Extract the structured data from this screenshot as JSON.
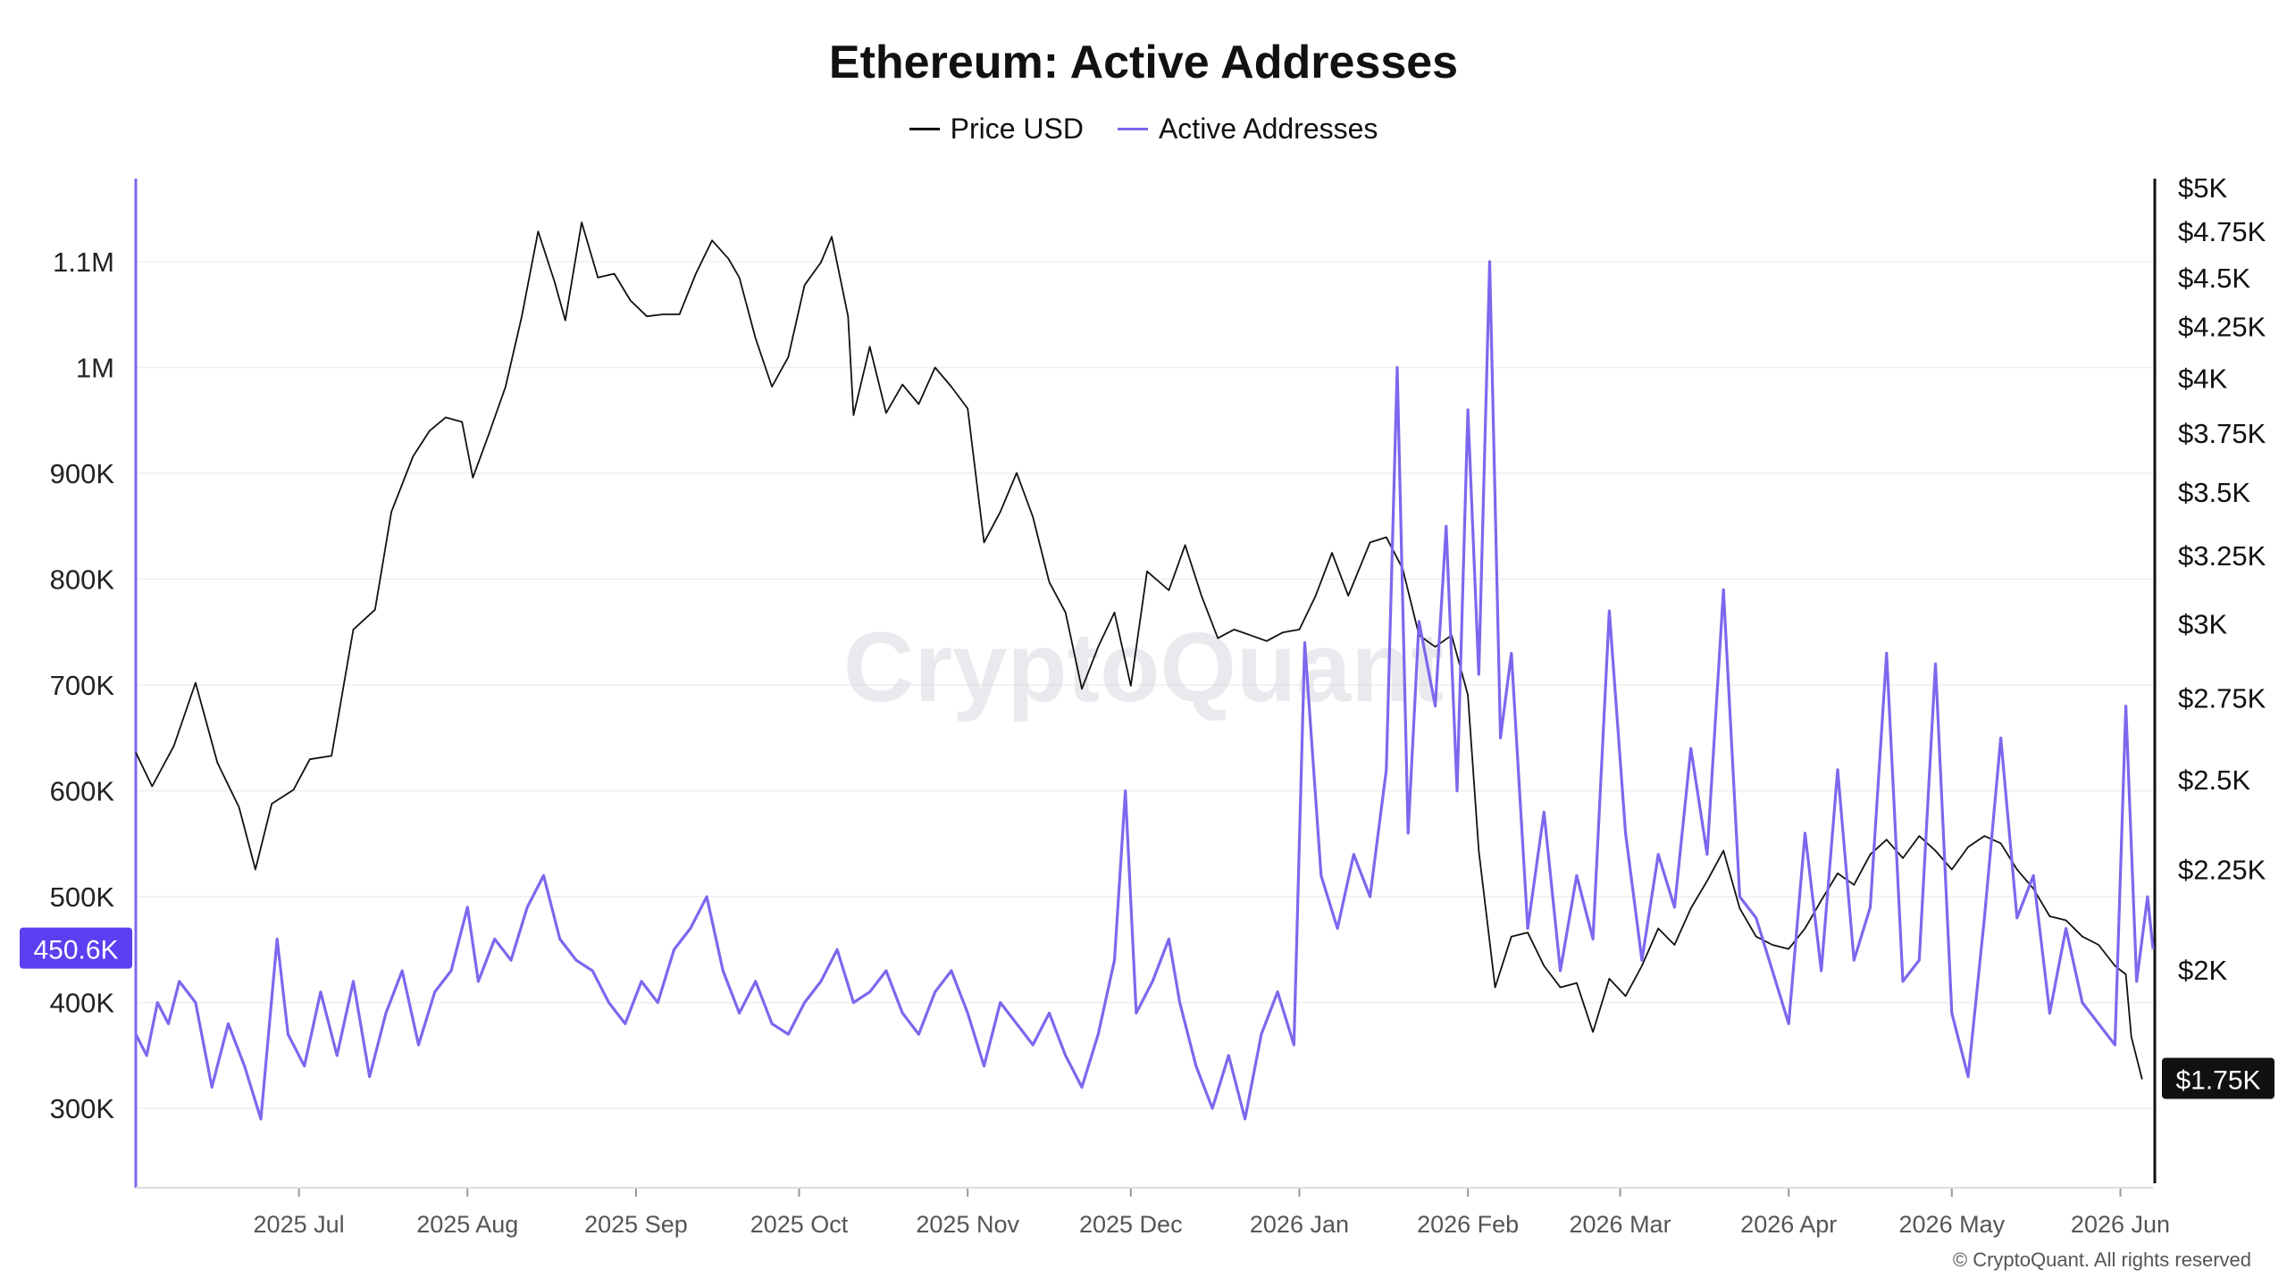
{
  "chart_data": {
    "type": "line",
    "title": "Ethereum: Active Addresses",
    "watermark": "CryptoQuant",
    "copyright": "© CryptoQuant. All rights reserved",
    "x_ticks": [
      "2025 Jul",
      "2025 Aug",
      "2025 Sep",
      "2025 Oct",
      "2025 Nov",
      "2025 Dec",
      "2026 Jan",
      "2026 Feb",
      "2026 Mar",
      "2026 Apr",
      "2026 May",
      "2026 Jun"
    ],
    "x_range": [
      "2025-06-01",
      "2026-06-07"
    ],
    "left_axis": {
      "ticks": [
        "1.1M",
        "1M",
        "900K",
        "800K",
        "700K",
        "600K",
        "500K",
        "400K",
        "300K"
      ],
      "range": [
        225000,
        1170000
      ],
      "current_label": "450.6K"
    },
    "right_axis": {
      "ticks": [
        "$5K",
        "$4.75K",
        "$4.5K",
        "$4.25K",
        "$4K",
        "$3.75K",
        "$3.5K",
        "$3.25K",
        "$3K",
        "$2.75K",
        "$2.5K",
        "$2.25K",
        "$2K"
      ],
      "scale": "log",
      "range": [
        1550,
        5000
      ],
      "current_label": "$1.75K"
    },
    "grid": true,
    "legend_position": "top-center",
    "series": [
      {
        "name": "Price USD",
        "axis": "right",
        "color": "#111111",
        "points": [
          [
            "2025-06-01",
            2580
          ],
          [
            "2025-06-04",
            2480
          ],
          [
            "2025-06-08",
            2600
          ],
          [
            "2025-06-12",
            2800
          ],
          [
            "2025-06-16",
            2550
          ],
          [
            "2025-06-20",
            2420
          ],
          [
            "2025-06-23",
            2250
          ],
          [
            "2025-06-26",
            2430
          ],
          [
            "2025-06-30",
            2470
          ],
          [
            "2025-07-03",
            2560
          ],
          [
            "2025-07-07",
            2570
          ],
          [
            "2025-07-11",
            2980
          ],
          [
            "2025-07-15",
            3050
          ],
          [
            "2025-07-18",
            3420
          ],
          [
            "2025-07-22",
            3650
          ],
          [
            "2025-07-25",
            3760
          ],
          [
            "2025-07-28",
            3820
          ],
          [
            "2025-07-31",
            3800
          ],
          [
            "2025-08-02",
            3560
          ],
          [
            "2025-08-05",
            3750
          ],
          [
            "2025-08-08",
            3960
          ],
          [
            "2025-08-11",
            4300
          ],
          [
            "2025-08-14",
            4750
          ],
          [
            "2025-08-17",
            4480
          ],
          [
            "2025-08-19",
            4280
          ],
          [
            "2025-08-22",
            4800
          ],
          [
            "2025-08-25",
            4500
          ],
          [
            "2025-08-28",
            4520
          ],
          [
            "2025-08-31",
            4380
          ],
          [
            "2025-09-03",
            4300
          ],
          [
            "2025-09-06",
            4310
          ],
          [
            "2025-09-09",
            4310
          ],
          [
            "2025-09-12",
            4520
          ],
          [
            "2025-09-15",
            4700
          ],
          [
            "2025-09-18",
            4600
          ],
          [
            "2025-09-20",
            4500
          ],
          [
            "2025-09-23",
            4190
          ],
          [
            "2025-09-26",
            3960
          ],
          [
            "2025-09-29",
            4100
          ],
          [
            "2025-10-02",
            4460
          ],
          [
            "2025-10-05",
            4580
          ],
          [
            "2025-10-07",
            4720
          ],
          [
            "2025-10-10",
            4300
          ],
          [
            "2025-10-11",
            3830
          ],
          [
            "2025-10-14",
            4150
          ],
          [
            "2025-10-17",
            3840
          ],
          [
            "2025-10-20",
            3970
          ],
          [
            "2025-10-23",
            3880
          ],
          [
            "2025-10-26",
            4050
          ],
          [
            "2025-10-29",
            3960
          ],
          [
            "2025-11-01",
            3860
          ],
          [
            "2025-11-04",
            3300
          ],
          [
            "2025-11-07",
            3420
          ],
          [
            "2025-11-10",
            3580
          ],
          [
            "2025-11-13",
            3400
          ],
          [
            "2025-11-16",
            3150
          ],
          [
            "2025-11-19",
            3040
          ],
          [
            "2025-11-22",
            2780
          ],
          [
            "2025-11-25",
            2920
          ],
          [
            "2025-11-28",
            3040
          ],
          [
            "2025-12-01",
            2790
          ],
          [
            "2025-12-04",
            3190
          ],
          [
            "2025-12-08",
            3120
          ],
          [
            "2025-12-11",
            3290
          ],
          [
            "2025-12-14",
            3100
          ],
          [
            "2025-12-17",
            2950
          ],
          [
            "2025-12-20",
            2980
          ],
          [
            "2025-12-23",
            2960
          ],
          [
            "2025-12-26",
            2940
          ],
          [
            "2025-12-29",
            2970
          ],
          [
            "2026-01-01",
            2980
          ],
          [
            "2026-01-04",
            3100
          ],
          [
            "2026-01-07",
            3260
          ],
          [
            "2026-01-10",
            3100
          ],
          [
            "2026-01-14",
            3300
          ],
          [
            "2026-01-17",
            3320
          ],
          [
            "2026-01-20",
            3200
          ],
          [
            "2026-01-23",
            2960
          ],
          [
            "2026-01-26",
            2920
          ],
          [
            "2026-01-29",
            2960
          ],
          [
            "2026-02-01",
            2760
          ],
          [
            "2026-02-03",
            2300
          ],
          [
            "2026-02-06",
            1960
          ],
          [
            "2026-02-09",
            2080
          ],
          [
            "2026-02-12",
            2090
          ],
          [
            "2026-02-15",
            2010
          ],
          [
            "2026-02-18",
            1960
          ],
          [
            "2026-02-21",
            1970
          ],
          [
            "2026-02-24",
            1860
          ],
          [
            "2026-02-27",
            1980
          ],
          [
            "2026-03-02",
            1940
          ],
          [
            "2026-03-05",
            2010
          ],
          [
            "2026-03-08",
            2100
          ],
          [
            "2026-03-11",
            2060
          ],
          [
            "2026-03-14",
            2150
          ],
          [
            "2026-03-17",
            2220
          ],
          [
            "2026-03-20",
            2300
          ],
          [
            "2026-03-23",
            2150
          ],
          [
            "2026-03-26",
            2080
          ],
          [
            "2026-03-29",
            2060
          ],
          [
            "2026-04-01",
            2050
          ],
          [
            "2026-04-04",
            2100
          ],
          [
            "2026-04-07",
            2170
          ],
          [
            "2026-04-10",
            2240
          ],
          [
            "2026-04-13",
            2210
          ],
          [
            "2026-04-16",
            2290
          ],
          [
            "2026-04-19",
            2330
          ],
          [
            "2026-04-22",
            2280
          ],
          [
            "2026-04-25",
            2340
          ],
          [
            "2026-04-28",
            2300
          ],
          [
            "2026-05-01",
            2250
          ],
          [
            "2026-05-04",
            2310
          ],
          [
            "2026-05-07",
            2340
          ],
          [
            "2026-05-10",
            2320
          ],
          [
            "2026-05-13",
            2250
          ],
          [
            "2026-05-16",
            2200
          ],
          [
            "2026-05-19",
            2130
          ],
          [
            "2026-05-22",
            2120
          ],
          [
            "2026-05-25",
            2080
          ],
          [
            "2026-05-28",
            2060
          ],
          [
            "2026-05-31",
            2010
          ],
          [
            "2026-06-02",
            1990
          ],
          [
            "2026-06-03",
            1850
          ],
          [
            "2026-06-05",
            1760
          ]
        ]
      },
      {
        "name": "Active Addresses",
        "axis": "left",
        "color": "#7b68ee",
        "points": [
          [
            "2025-06-01",
            370000
          ],
          [
            "2025-06-03",
            350000
          ],
          [
            "2025-06-05",
            400000
          ],
          [
            "2025-06-07",
            380000
          ],
          [
            "2025-06-09",
            420000
          ],
          [
            "2025-06-12",
            400000
          ],
          [
            "2025-06-15",
            320000
          ],
          [
            "2025-06-18",
            380000
          ],
          [
            "2025-06-21",
            340000
          ],
          [
            "2025-06-24",
            290000
          ],
          [
            "2025-06-27",
            460000
          ],
          [
            "2025-06-29",
            370000
          ],
          [
            "2025-07-02",
            340000
          ],
          [
            "2025-07-05",
            410000
          ],
          [
            "2025-07-08",
            350000
          ],
          [
            "2025-07-11",
            420000
          ],
          [
            "2025-07-14",
            330000
          ],
          [
            "2025-07-17",
            390000
          ],
          [
            "2025-07-20",
            430000
          ],
          [
            "2025-07-23",
            360000
          ],
          [
            "2025-07-26",
            410000
          ],
          [
            "2025-07-29",
            430000
          ],
          [
            "2025-08-01",
            490000
          ],
          [
            "2025-08-03",
            420000
          ],
          [
            "2025-08-06",
            460000
          ],
          [
            "2025-08-09",
            440000
          ],
          [
            "2025-08-12",
            490000
          ],
          [
            "2025-08-15",
            520000
          ],
          [
            "2025-08-18",
            460000
          ],
          [
            "2025-08-21",
            440000
          ],
          [
            "2025-08-24",
            430000
          ],
          [
            "2025-08-27",
            400000
          ],
          [
            "2025-08-30",
            380000
          ],
          [
            "2025-09-02",
            420000
          ],
          [
            "2025-09-05",
            400000
          ],
          [
            "2025-09-08",
            450000
          ],
          [
            "2025-09-11",
            470000
          ],
          [
            "2025-09-14",
            500000
          ],
          [
            "2025-09-17",
            430000
          ],
          [
            "2025-09-20",
            390000
          ],
          [
            "2025-09-23",
            420000
          ],
          [
            "2025-09-26",
            380000
          ],
          [
            "2025-09-29",
            370000
          ],
          [
            "2025-10-02",
            400000
          ],
          [
            "2025-10-05",
            420000
          ],
          [
            "2025-10-08",
            450000
          ],
          [
            "2025-10-11",
            400000
          ],
          [
            "2025-10-14",
            410000
          ],
          [
            "2025-10-17",
            430000
          ],
          [
            "2025-10-20",
            390000
          ],
          [
            "2025-10-23",
            370000
          ],
          [
            "2025-10-26",
            410000
          ],
          [
            "2025-10-29",
            430000
          ],
          [
            "2025-11-01",
            390000
          ],
          [
            "2025-11-04",
            340000
          ],
          [
            "2025-11-07",
            400000
          ],
          [
            "2025-11-10",
            380000
          ],
          [
            "2025-11-13",
            360000
          ],
          [
            "2025-11-16",
            390000
          ],
          [
            "2025-11-19",
            350000
          ],
          [
            "2025-11-22",
            320000
          ],
          [
            "2025-11-25",
            370000
          ],
          [
            "2025-11-28",
            440000
          ],
          [
            "2025-11-30",
            600000
          ],
          [
            "2025-12-02",
            390000
          ],
          [
            "2025-12-05",
            420000
          ],
          [
            "2025-12-08",
            460000
          ],
          [
            "2025-12-10",
            400000
          ],
          [
            "2025-12-13",
            340000
          ],
          [
            "2025-12-16",
            300000
          ],
          [
            "2025-12-19",
            350000
          ],
          [
            "2025-12-22",
            290000
          ],
          [
            "2025-12-25",
            370000
          ],
          [
            "2025-12-28",
            410000
          ],
          [
            "2025-12-31",
            360000
          ],
          [
            "2026-01-02",
            740000
          ],
          [
            "2026-01-05",
            520000
          ],
          [
            "2026-01-08",
            470000
          ],
          [
            "2026-01-11",
            540000
          ],
          [
            "2026-01-14",
            500000
          ],
          [
            "2026-01-17",
            620000
          ],
          [
            "2026-01-19",
            1000000
          ],
          [
            "2026-01-21",
            560000
          ],
          [
            "2026-01-23",
            760000
          ],
          [
            "2026-01-26",
            680000
          ],
          [
            "2026-01-28",
            850000
          ],
          [
            "2026-01-30",
            600000
          ],
          [
            "2026-02-01",
            960000
          ],
          [
            "2026-02-03",
            710000
          ],
          [
            "2026-02-05",
            1100000
          ],
          [
            "2026-02-07",
            650000
          ],
          [
            "2026-02-09",
            730000
          ],
          [
            "2026-02-12",
            470000
          ],
          [
            "2026-02-15",
            580000
          ],
          [
            "2026-02-18",
            430000
          ],
          [
            "2026-02-21",
            520000
          ],
          [
            "2026-02-24",
            460000
          ],
          [
            "2026-02-27",
            770000
          ],
          [
            "2026-03-02",
            560000
          ],
          [
            "2026-03-05",
            440000
          ],
          [
            "2026-03-08",
            540000
          ],
          [
            "2026-03-11",
            490000
          ],
          [
            "2026-03-14",
            640000
          ],
          [
            "2026-03-17",
            540000
          ],
          [
            "2026-03-20",
            790000
          ],
          [
            "2026-03-23",
            500000
          ],
          [
            "2026-03-26",
            480000
          ],
          [
            "2026-03-29",
            430000
          ],
          [
            "2026-04-01",
            380000
          ],
          [
            "2026-04-04",
            560000
          ],
          [
            "2026-04-07",
            430000
          ],
          [
            "2026-04-10",
            620000
          ],
          [
            "2026-04-13",
            440000
          ],
          [
            "2026-04-16",
            490000
          ],
          [
            "2026-04-19",
            730000
          ],
          [
            "2026-04-22",
            420000
          ],
          [
            "2026-04-25",
            440000
          ],
          [
            "2026-04-28",
            720000
          ],
          [
            "2026-05-01",
            390000
          ],
          [
            "2026-05-04",
            330000
          ],
          [
            "2026-05-07",
            480000
          ],
          [
            "2026-05-10",
            650000
          ],
          [
            "2026-05-13",
            480000
          ],
          [
            "2026-05-16",
            520000
          ],
          [
            "2026-05-19",
            390000
          ],
          [
            "2026-05-22",
            470000
          ],
          [
            "2026-05-25",
            400000
          ],
          [
            "2026-05-28",
            380000
          ],
          [
            "2026-05-31",
            360000
          ],
          [
            "2026-06-02",
            680000
          ],
          [
            "2026-06-04",
            420000
          ],
          [
            "2026-06-06",
            500000
          ],
          [
            "2026-06-07",
            450600
          ]
        ]
      }
    ]
  }
}
